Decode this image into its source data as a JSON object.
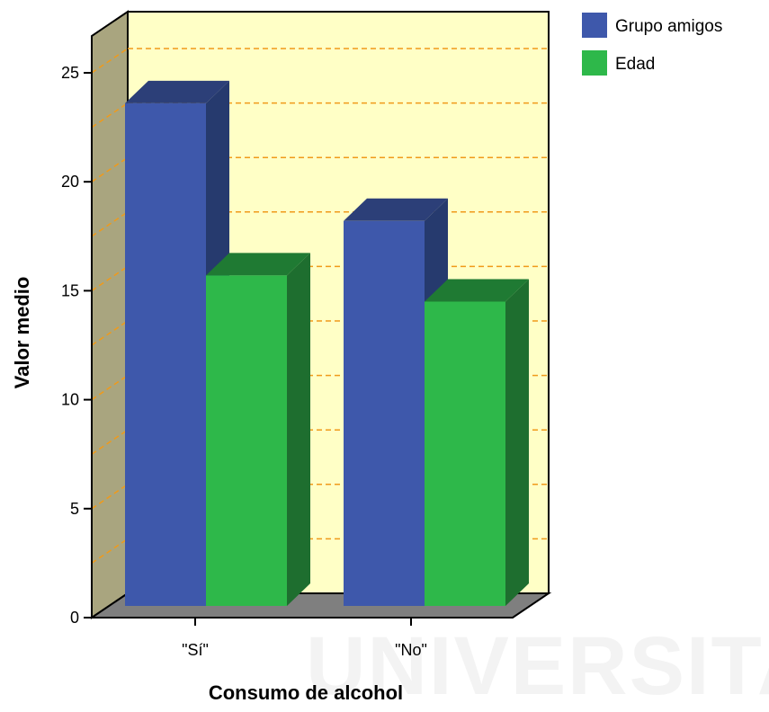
{
  "chart_data": {
    "type": "bar",
    "title": "",
    "xlabel": "Consumo de alcohol",
    "ylabel": "Valor medio",
    "categories": [
      "\"Sí\"",
      "\"No\""
    ],
    "series": [
      {
        "name": "Grupo amigos",
        "values": [
          23.1,
          17.7
        ],
        "color": "#3e58ab",
        "side_color": "#263a6e",
        "top_color": "#2c3f78"
      },
      {
        "name": "Edad",
        "values": [
          15.2,
          14.0
        ],
        "color": "#2eb84a",
        "side_color": "#1e6e2f",
        "top_color": "#1f7a33"
      }
    ],
    "ylim": [
      0,
      25
    ],
    "yticks": [
      0,
      5,
      10,
      15,
      20,
      25
    ],
    "grid": true,
    "grid_color": "#f09a1a",
    "wall_color": "#ffffc6",
    "side_wall_color": "#a9a57f",
    "floor_color": "#7f7f7f",
    "legend_position": "top-right"
  },
  "watermark": "UNIVERSITAS"
}
